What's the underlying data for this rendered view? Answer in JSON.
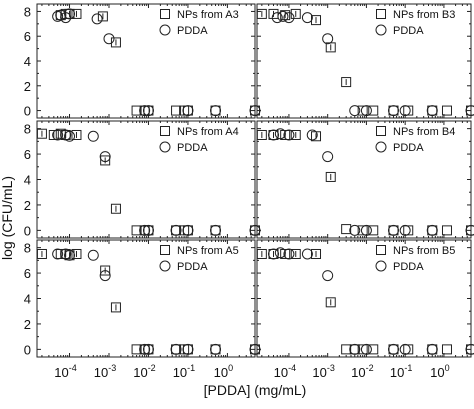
{
  "figure": {
    "xlabel": "[PDDA] (mg/mL)",
    "ylabel": "log (CFU/mL)"
  },
  "chart_data": [
    {
      "type": "scatter",
      "panel": "A3",
      "x_scale": "log",
      "xlim": [
        1.5e-05,
        5
      ],
      "ylim": [
        -0.6,
        8.6
      ],
      "y_ticks": [
        0,
        2,
        4,
        6,
        8
      ],
      "x_ticks": [
        0.0001,
        0.001,
        0.01,
        0.1,
        1
      ],
      "x_tick_labels": [
        {
          "b": "10",
          "e": "-4"
        },
        {
          "b": "10",
          "e": "-3"
        },
        {
          "b": "10",
          "e": "-2"
        },
        {
          "b": "10",
          "e": "-1"
        },
        {
          "b": "10",
          "e": "0"
        }
      ],
      "show_y_tick_labels": true,
      "show_x_tick_labels": false,
      "legend_position": "top-right",
      "series": [
        {
          "name": "NPs from A3",
          "marker": "square",
          "x": [
            6e-05,
            8e-05,
            0.0001,
            0.00015,
            0.0007,
            0.0015,
            0.005,
            0.008,
            0.01,
            0.05,
            0.08,
            0.1,
            0.5,
            5
          ],
          "y": [
            7.7,
            7.8,
            7.8,
            7.8,
            7.6,
            5.5,
            0,
            0,
            0,
            0,
            0,
            0,
            0,
            0
          ]
        },
        {
          "name": "PDDA",
          "marker": "circle",
          "x": [
            5e-05,
            6e-05,
            8e-05,
            0.0001,
            0.0005,
            0.001,
            0.008,
            0.01,
            0.1,
            0.5,
            5
          ],
          "y": [
            7.6,
            7.7,
            7.5,
            7.8,
            7.4,
            5.8,
            0,
            0,
            0,
            0,
            0
          ]
        }
      ]
    },
    {
      "type": "scatter",
      "panel": "B3",
      "x_scale": "log",
      "xlim": [
        1.5e-05,
        5
      ],
      "ylim": [
        -0.6,
        8.6
      ],
      "y_ticks": [
        0,
        2,
        4,
        6,
        8
      ],
      "x_ticks": [
        0.0001,
        0.001,
        0.01,
        0.1,
        1
      ],
      "x_tick_labels": [
        {
          "b": "10",
          "e": "-4"
        },
        {
          "b": "10",
          "e": "-3"
        },
        {
          "b": "10",
          "e": "-2"
        },
        {
          "b": "10",
          "e": "-1"
        },
        {
          "b": "10",
          "e": "0"
        }
      ],
      "show_y_tick_labels": false,
      "show_x_tick_labels": false,
      "legend_position": "top-right",
      "series": [
        {
          "name": "NPs from B3",
          "marker": "square",
          "x": [
            2e-05,
            4e-05,
            8e-05,
            0.00015,
            0.0005,
            0.0012,
            0.003,
            0.008,
            0.015,
            0.05,
            0.12,
            0.5,
            1.2,
            5
          ],
          "y": [
            7.8,
            7.8,
            7.7,
            7.8,
            7.3,
            5.1,
            2.3,
            0,
            0,
            0,
            0,
            0,
            0,
            0
          ]
        },
        {
          "name": "PDDA",
          "marker": "circle",
          "x": [
            5e-05,
            7e-05,
            0.0001,
            0.0003,
            0.001,
            0.005,
            0.01,
            0.05,
            0.1,
            0.5,
            5
          ],
          "y": [
            7.5,
            7.6,
            7.5,
            7.5,
            5.8,
            0,
            0,
            0,
            0,
            0,
            0
          ]
        }
      ]
    },
    {
      "type": "scatter",
      "panel": "A4",
      "x_scale": "log",
      "xlim": [
        1.5e-05,
        5
      ],
      "ylim": [
        -0.6,
        8.6
      ],
      "y_ticks": [
        0,
        2,
        4,
        6,
        8
      ],
      "x_ticks": [
        0.0001,
        0.001,
        0.01,
        0.1,
        1
      ],
      "x_tick_labels": [
        {
          "b": "10",
          "e": "-4"
        },
        {
          "b": "10",
          "e": "-3"
        },
        {
          "b": "10",
          "e": "-2"
        },
        {
          "b": "10",
          "e": "-1"
        },
        {
          "b": "10",
          "e": "0"
        }
      ],
      "show_y_tick_labels": true,
      "show_x_tick_labels": false,
      "legend_position": "top-right",
      "series": [
        {
          "name": "NPs from A4",
          "marker": "square",
          "x": [
            2e-05,
            4e-05,
            6e-05,
            8e-05,
            0.00015,
            0.0008,
            0.0015,
            0.005,
            0.008,
            0.01,
            0.05,
            0.08,
            0.1,
            0.5,
            5
          ],
          "y": [
            7.6,
            7.5,
            7.6,
            7.5,
            7.5,
            5.5,
            1.7,
            0,
            0,
            0,
            0,
            0,
            0,
            0,
            0
          ]
        },
        {
          "name": "PDDA",
          "marker": "circle",
          "x": [
            5e-05,
            8e-05,
            0.0001,
            0.0004,
            0.0008,
            0.008,
            0.01,
            0.05,
            0.1,
            0.5,
            5
          ],
          "y": [
            7.5,
            7.5,
            7.4,
            7.4,
            5.8,
            0,
            0,
            0,
            0,
            0,
            0
          ]
        }
      ]
    },
    {
      "type": "scatter",
      "panel": "B4",
      "x_scale": "log",
      "xlim": [
        1.5e-05,
        5
      ],
      "ylim": [
        -0.6,
        8.6
      ],
      "y_ticks": [
        0,
        2,
        4,
        6,
        8
      ],
      "x_ticks": [
        0.0001,
        0.001,
        0.01,
        0.1,
        1
      ],
      "x_tick_labels": [
        {
          "b": "10",
          "e": "-4"
        },
        {
          "b": "10",
          "e": "-3"
        },
        {
          "b": "10",
          "e": "-2"
        },
        {
          "b": "10",
          "e": "-1"
        },
        {
          "b": "10",
          "e": "0"
        }
      ],
      "show_y_tick_labels": false,
      "show_x_tick_labels": false,
      "legend_position": "top-right",
      "series": [
        {
          "name": "NPs from B4",
          "marker": "square",
          "x": [
            2e-05,
            4e-05,
            8e-05,
            0.00015,
            0.0005,
            0.0012,
            0.003,
            0.008,
            0.015,
            0.05,
            0.12,
            0.5,
            1.2,
            5
          ],
          "y": [
            7.5,
            7.5,
            7.5,
            7.5,
            7.4,
            4.2,
            0.1,
            0,
            0,
            0,
            0,
            0,
            0,
            0
          ]
        },
        {
          "name": "PDDA",
          "marker": "circle",
          "x": [
            4e-05,
            6e-05,
            0.0001,
            0.0004,
            0.001,
            0.005,
            0.01,
            0.05,
            0.1,
            0.5,
            5
          ],
          "y": [
            7.5,
            7.6,
            7.5,
            7.5,
            5.8,
            0,
            0,
            0,
            0,
            0,
            0
          ]
        }
      ]
    },
    {
      "type": "scatter",
      "panel": "A5",
      "x_scale": "log",
      "xlim": [
        1.5e-05,
        5
      ],
      "ylim": [
        -0.6,
        8.6
      ],
      "y_ticks": [
        0,
        2,
        4,
        6,
        8
      ],
      "x_ticks": [
        0.0001,
        0.001,
        0.01,
        0.1,
        1
      ],
      "x_tick_labels": [
        {
          "b": "10",
          "e": "-4"
        },
        {
          "b": "10",
          "e": "-3"
        },
        {
          "b": "10",
          "e": "-2"
        },
        {
          "b": "10",
          "e": "-1"
        },
        {
          "b": "10",
          "e": "0"
        }
      ],
      "show_y_tick_labels": true,
      "show_x_tick_labels": true,
      "legend_position": "top-right",
      "series": [
        {
          "name": "NPs from A5",
          "marker": "square",
          "x": [
            2e-05,
            6e-05,
            8e-05,
            0.0001,
            0.00015,
            0.0008,
            0.0015,
            0.005,
            0.008,
            0.01,
            0.05,
            0.08,
            0.1,
            0.5,
            5
          ],
          "y": [
            7.5,
            7.5,
            7.5,
            7.4,
            7.5,
            6.2,
            3.3,
            0,
            0,
            0,
            0,
            0,
            0,
            0,
            0
          ]
        },
        {
          "name": "PDDA",
          "marker": "circle",
          "x": [
            5e-05,
            8e-05,
            0.0001,
            0.0004,
            0.0008,
            0.008,
            0.01,
            0.05,
            0.1,
            0.5,
            5
          ],
          "y": [
            7.5,
            7.5,
            7.4,
            7.4,
            5.8,
            0,
            0,
            0,
            0,
            0,
            0
          ]
        }
      ]
    },
    {
      "type": "scatter",
      "panel": "B5",
      "x_scale": "log",
      "xlim": [
        1.5e-05,
        5
      ],
      "ylim": [
        -0.6,
        8.6
      ],
      "y_ticks": [
        0,
        2,
        4,
        6,
        8
      ],
      "x_ticks": [
        0.0001,
        0.001,
        0.01,
        0.1,
        1
      ],
      "x_tick_labels": [
        {
          "b": "10",
          "e": "-4"
        },
        {
          "b": "10",
          "e": "-3"
        },
        {
          "b": "10",
          "e": "-2"
        },
        {
          "b": "10",
          "e": "-1"
        },
        {
          "b": "10",
          "e": "0"
        }
      ],
      "show_y_tick_labels": false,
      "show_x_tick_labels": true,
      "legend_position": "top-right",
      "series": [
        {
          "name": "NPs from B5",
          "marker": "square",
          "x": [
            2e-05,
            4e-05,
            8e-05,
            0.00015,
            0.0005,
            0.0012,
            0.003,
            0.005,
            0.008,
            0.015,
            0.05,
            0.12,
            0.5,
            1.2,
            5
          ],
          "y": [
            7.5,
            7.5,
            7.5,
            7.5,
            7.5,
            3.7,
            0,
            0,
            0,
            0,
            0,
            0,
            0,
            0,
            0
          ]
        },
        {
          "name": "PDDA",
          "marker": "circle",
          "x": [
            4e-05,
            6e-05,
            0.0001,
            0.0003,
            0.001,
            0.005,
            0.01,
            0.05,
            0.1,
            0.5,
            5
          ],
          "y": [
            7.5,
            7.6,
            7.5,
            7.5,
            5.8,
            0,
            0,
            0,
            0,
            0,
            0
          ]
        }
      ]
    }
  ]
}
